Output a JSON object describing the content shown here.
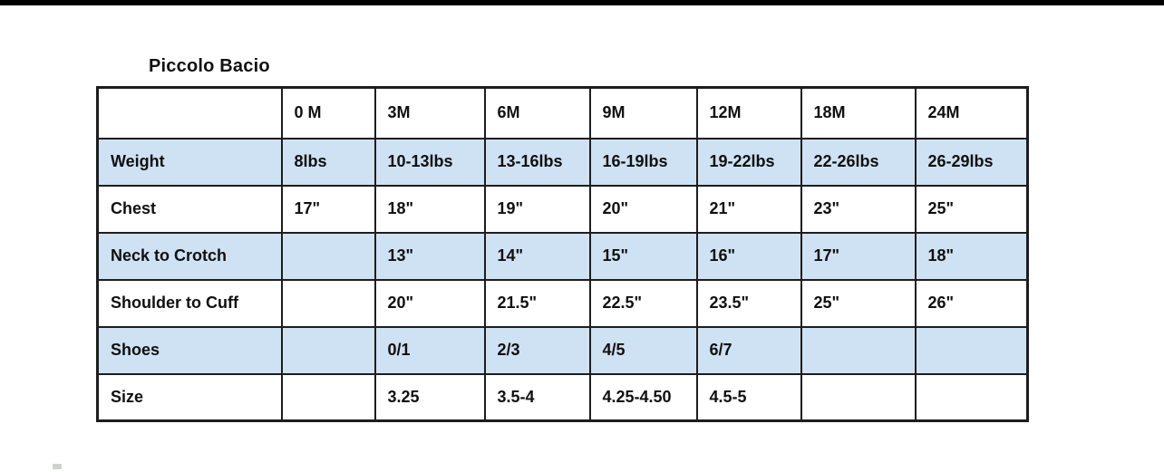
{
  "page": {
    "title": "Piccolo Bacio"
  },
  "colors": {
    "shaded_row": "#cfe2f3",
    "border": "#1d1d1d",
    "top_bar": "#020202",
    "text": "#101010"
  },
  "table": {
    "columns": [
      "",
      "0 M",
      "3M",
      "6M",
      "9M",
      "12M",
      "18M",
      "24M"
    ],
    "rows": [
      {
        "label": "Weight",
        "shaded": true,
        "values": [
          "8lbs",
          "10-13lbs",
          "13-16lbs",
          "16-19lbs",
          "19-22lbs",
          "22-26lbs",
          "26-29lbs"
        ]
      },
      {
        "label": "Chest",
        "shaded": false,
        "values": [
          "17\"",
          "18\"",
          "19\"",
          "20\"",
          "21\"",
          "23\"",
          "25\""
        ]
      },
      {
        "label": "Neck to Crotch",
        "shaded": true,
        "values": [
          "",
          "13\"",
          "14\"",
          "15\"",
          "16\"",
          "17\"",
          "18\""
        ]
      },
      {
        "label": "Shoulder to Cuff",
        "shaded": false,
        "values": [
          "",
          "20\"",
          "21.5\"",
          "22.5\"",
          "23.5\"",
          "25\"",
          "26\""
        ]
      },
      {
        "label": "Shoes",
        "shaded": true,
        "values": [
          "",
          "0/1",
          "2/3",
          "4/5",
          "6/7",
          "",
          ""
        ]
      },
      {
        "label": "Size",
        "shaded": false,
        "values": [
          "",
          "3.25",
          "3.5-4",
          "4.25-4.50",
          "4.5-5",
          "",
          ""
        ]
      }
    ]
  }
}
